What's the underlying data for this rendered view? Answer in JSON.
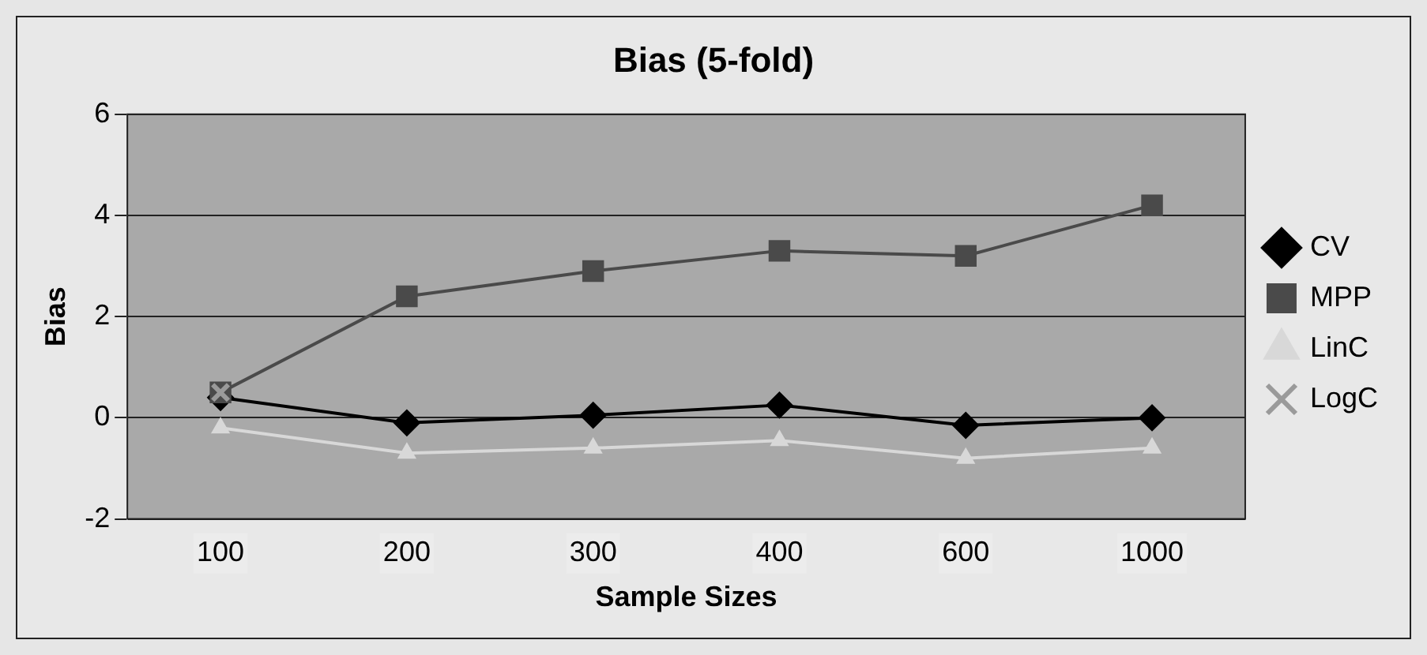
{
  "chart_data": {
    "type": "line",
    "title": "Bias (5-fold)",
    "xlabel": "Sample Sizes",
    "ylabel": "Bias",
    "categories": [
      "100",
      "200",
      "300",
      "400",
      "600",
      "1000"
    ],
    "series": [
      {
        "name": "CV",
        "color": "#000000",
        "marker": "diamond",
        "values": [
          0.4,
          -0.1,
          0.05,
          0.25,
          -0.15,
          0.0
        ]
      },
      {
        "name": "MPP",
        "color": "#4a4a4a",
        "marker": "square",
        "values": [
          0.5,
          2.4,
          2.9,
          3.3,
          3.2,
          4.2
        ]
      },
      {
        "name": "LinC",
        "color": "#d8d8d8",
        "marker": "triangle",
        "values": [
          -0.2,
          -0.7,
          -0.6,
          -0.45,
          -0.8,
          -0.6
        ]
      },
      {
        "name": "LogC",
        "color": "#9a9a9a",
        "marker": "cross",
        "values": [
          0.5,
          null,
          null,
          null,
          null,
          null
        ]
      }
    ],
    "ylim": [
      -2,
      6
    ],
    "yticks": [
      -2,
      0,
      2,
      4,
      6
    ],
    "grid": "y",
    "legend": "right"
  }
}
